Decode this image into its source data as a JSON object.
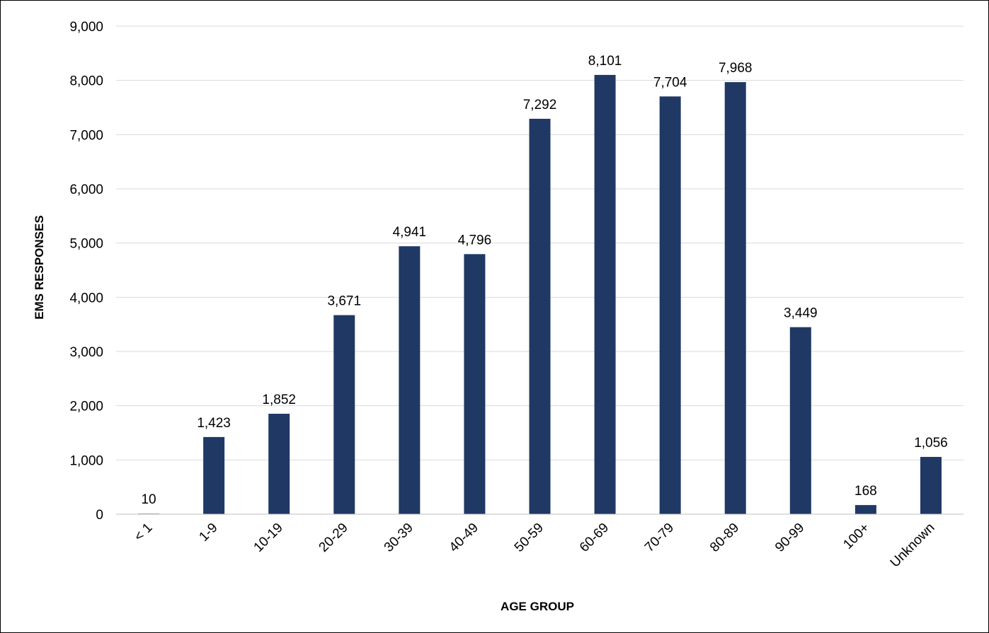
{
  "chart_data": {
    "type": "bar",
    "xlabel": "AGE GROUP",
    "ylabel": "EMS RESPONSES",
    "categories": [
      "< 1",
      "1-9",
      "10-19",
      "20-29",
      "30-39",
      "40-49",
      "50-59",
      "60-69",
      "70-79",
      "80-89",
      "90-99",
      "100+",
      "Unknown"
    ],
    "values": [
      10,
      1423,
      1852,
      3671,
      4941,
      4796,
      7292,
      8101,
      7704,
      7968,
      3449,
      168,
      1056
    ],
    "data_labels": [
      "10",
      "1,423",
      "1,852",
      "3,671",
      "4,941",
      "4,796",
      "7,292",
      "8,101",
      "7,704",
      "7,968",
      "3,449",
      "168",
      "1,056"
    ],
    "ylim": [
      0,
      9000
    ],
    "yticks": [
      0,
      1000,
      2000,
      3000,
      4000,
      5000,
      6000,
      7000,
      8000,
      9000
    ],
    "ytick_labels": [
      "0",
      "1,000",
      "2,000",
      "3,000",
      "4,000",
      "5,000",
      "6,000",
      "7,000",
      "8,000",
      "9,000"
    ],
    "grid": true,
    "legend": "none",
    "bar_color": "#203864",
    "grid_color": "#d9d9d9",
    "axis_color": "#bfbfbf"
  }
}
